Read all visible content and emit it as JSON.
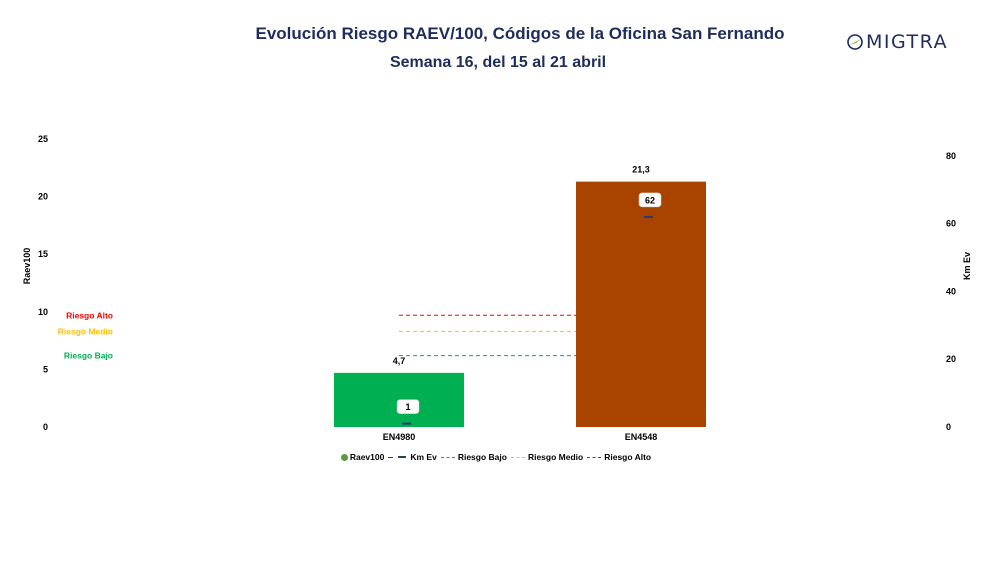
{
  "header": {
    "title": "Evolución Riesgo RAEV/100, Códigos de la Oficina San Fernando",
    "subtitle": "Semana 16, del 15 al 21 abril",
    "logo_text": "MIGTRA"
  },
  "colors": {
    "title": "#1f2d5c",
    "bar_low": "#00b050",
    "bar_high": "#a94300",
    "km_line": "#2e3a6e",
    "riesgo_bajo": "#00b050",
    "riesgo_medio": "#ffc000",
    "riesgo_alto": "#ff0000",
    "raev_legend": "#5b9b3d"
  },
  "chart_data": {
    "type": "bar",
    "categories": [
      "EN4980",
      "EN4548"
    ],
    "series": [
      {
        "name": "Raev100",
        "axis": "left",
        "values": [
          4.7,
          21.3
        ],
        "labels": [
          "4,7",
          "21,3"
        ]
      },
      {
        "name": "Km Ev",
        "axis": "right",
        "values": [
          1,
          62
        ],
        "labels": [
          "1",
          "62"
        ]
      }
    ],
    "thresholds": [
      {
        "name": "Riesgo Alto",
        "value": 9.7
      },
      {
        "name": "Riesgo Medio",
        "value": 8.3
      },
      {
        "name": "Riesgo Bajo",
        "value": 6.2
      }
    ],
    "ylabel": "Raev100",
    "y2label": "Km Ev",
    "ylim": [
      0,
      25
    ],
    "yticks": [
      "0",
      "5",
      "10",
      "15",
      "20",
      "25"
    ],
    "y2lim": [
      0,
      85
    ],
    "y2ticks": [
      "0",
      "20",
      "40",
      "60",
      "80"
    ],
    "legend": {
      "position": "bottom",
      "items": [
        "Raev100",
        "Km Ev",
        "Riesgo Bajo",
        "Riesgo Medio",
        "Riesgo Alto"
      ]
    }
  }
}
